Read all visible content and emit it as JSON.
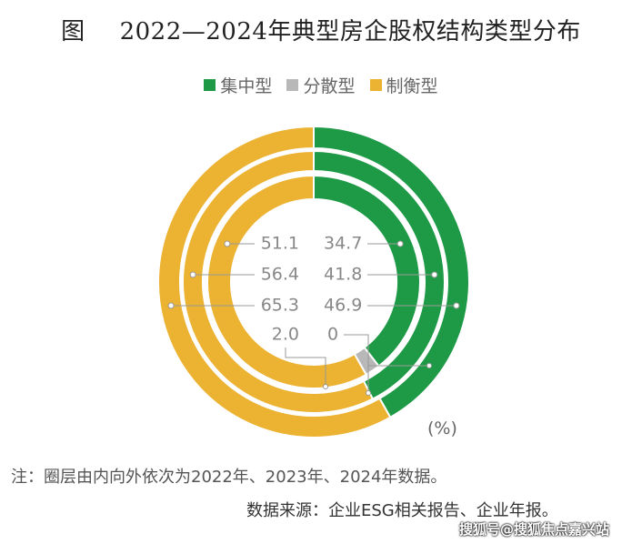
{
  "chart_data": {
    "type": "pie",
    "subtype": "nested-donut",
    "title_prefix": "图",
    "title": "2022—2024年典型房企股权结构类型分布",
    "legend": [
      "集中型",
      "分散型",
      "制衡型"
    ],
    "legend_placement": "top",
    "colors": {
      "集中型": "#1e9a47",
      "分散型": "#b8b8b8",
      "制衡型": "#ecb232"
    },
    "rings": [
      {
        "year": "2022",
        "values": {
          "集中型": 34.7,
          "分散型": 2.0,
          "制衡型": 51.1
        }
      },
      {
        "year": "2023",
        "values": {
          "集中型": 41.8,
          "分散型": 0,
          "制衡型": 56.4
        }
      },
      {
        "year": "2024",
        "values": {
          "集中型": 46.9,
          "分散型": 0,
          "制衡型": 65.3
        }
      }
    ],
    "labels": {
      "left": [
        "51.1",
        "56.4",
        "65.3"
      ],
      "right": [
        "34.7",
        "41.8",
        "46.9"
      ],
      "small_left": "2.0",
      "small_right": "0"
    },
    "unit": "(%)"
  },
  "notes": {
    "note": "注：圈层由内向外依次为2022年、2023年、2024年数据。",
    "source": "数据来源：企业ESG相关报告、企业年报。"
  },
  "watermark": "搜狐号@搜狐焦点嘉兴站"
}
